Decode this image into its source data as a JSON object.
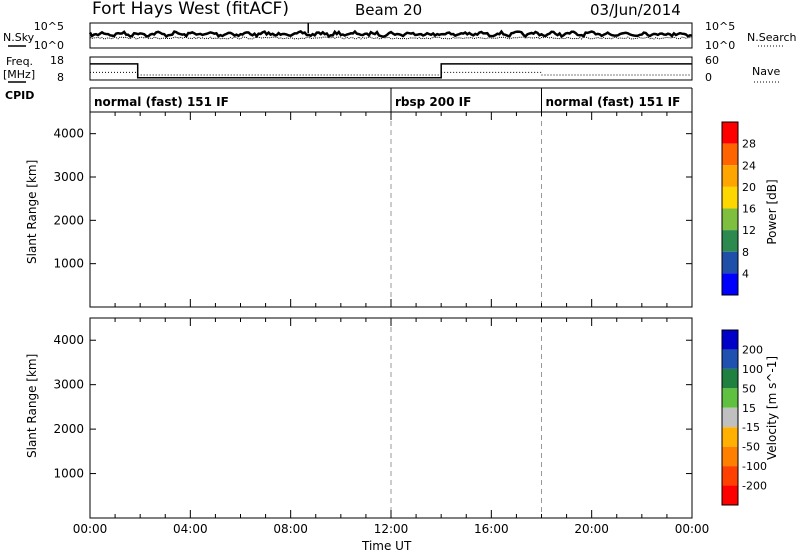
{
  "header": {
    "station": "Fort Hays West (fitACF)",
    "beam": "Beam 20",
    "date": "03/Jun/2014"
  },
  "side_labels": {
    "nsky": "N.Sky",
    "freq": "Freq.",
    "freq_unit": "[MHz]",
    "cpid": "CPID",
    "nsearch": "N.Search",
    "nave": "Nave"
  },
  "cpid_labels": [
    "normal (fast) 151 IF",
    "rbsp 200 IF",
    "normal (fast) 151 IF"
  ],
  "colors": {
    "power": [
      "#0000ff",
      "#1f4fa8",
      "#2c8a4f",
      "#7fbf3f",
      "#ffd700",
      "#ffa500",
      "#ff6400",
      "#ff0000"
    ],
    "velocity": [
      "#0000c8",
      "#2050b0",
      "#208040",
      "#60c040",
      "#c0c0c0",
      "#ffb000",
      "#ff8000",
      "#ff4000",
      "#ff0000"
    ]
  },
  "chart_data": [
    {
      "type": "line",
      "name": "noise-panel",
      "ylabel_left": "N.Sky",
      "ylabel_right": "N.Search",
      "left_ticks": [
        "10^5",
        "10^0"
      ],
      "right_ticks": [
        "10^5",
        "10^0"
      ]
    },
    {
      "type": "line",
      "name": "frequency-nave-panel",
      "left_ticks": [
        "18",
        "8"
      ],
      "right_ticks": [
        "60",
        "0"
      ],
      "frequency_segments": [
        {
          "x0": 0.0,
          "x1": 1.9,
          "y": 15
        },
        {
          "x0": 1.9,
          "x1": 14.0,
          "y": 9
        },
        {
          "x0": 14.0,
          "x1": 24.0,
          "y": 15
        }
      ],
      "nave_segments": [
        {
          "x0": 0.0,
          "x1": 1.9,
          "y": 20
        },
        {
          "x0": 1.9,
          "x1": 14.0,
          "y": 13
        },
        {
          "x0": 14.0,
          "x1": 18.0,
          "y": 20
        },
        {
          "x0": 18.0,
          "x1": 24.0,
          "y": 13
        }
      ]
    },
    {
      "type": "heatmap",
      "name": "power-panel",
      "ylabel": "Slant Range [km]",
      "ylim": [
        0,
        4500
      ],
      "yticks": [
        "1000",
        "2000",
        "3000",
        "4000"
      ],
      "colorbar_label": "Power [dB]",
      "colorbar_ticks": [
        "4",
        "8",
        "12",
        "16",
        "20",
        "24",
        "28"
      ]
    },
    {
      "type": "heatmap",
      "name": "velocity-panel",
      "ylabel": "Slant Range [km]",
      "ylim": [
        0,
        4500
      ],
      "yticks": [
        "1000",
        "2000",
        "3000",
        "4000"
      ],
      "colorbar_label": "Velocity [m s^-1]",
      "colorbar_ticks": [
        "200",
        "100",
        "50",
        "15",
        "-15",
        "-50",
        "-100",
        "-200"
      ]
    }
  ],
  "xaxis": {
    "label": "Time UT",
    "ticks": [
      "00:00",
      "04:00",
      "08:00",
      "12:00",
      "16:00",
      "20:00",
      "00:00"
    ],
    "xlim": [
      0,
      24
    ]
  }
}
